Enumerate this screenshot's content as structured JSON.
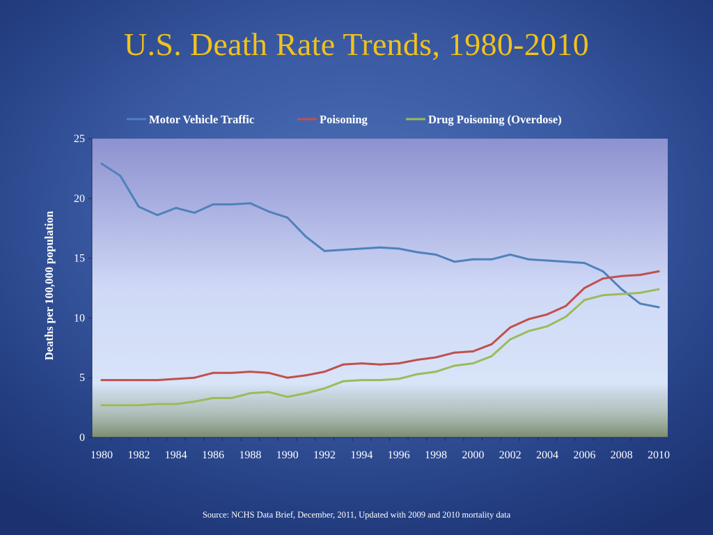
{
  "slide": {
    "title": "U.S. Death Rate Trends, 1980-2010",
    "source": "Source:  NCHS Data Brief, December, 2011, Updated with 2009 and 2010 mortality data"
  },
  "chart_data": {
    "type": "line",
    "title": "",
    "xlabel": "",
    "ylabel": "Deaths per 100,000 population",
    "ylim": [
      0,
      25
    ],
    "xlim": [
      1980,
      2010
    ],
    "yticks": [
      "0",
      "5",
      "10",
      "15",
      "20",
      "25"
    ],
    "xticks": [
      "1980",
      "1982",
      "1984",
      "1986",
      "1988",
      "1990",
      "1992",
      "1994",
      "1996",
      "1998",
      "2000",
      "2002",
      "2004",
      "2006",
      "2008",
      "2010"
    ],
    "legend_position": "top",
    "grid": false,
    "x": [
      1980,
      1981,
      1982,
      1983,
      1984,
      1985,
      1986,
      1987,
      1988,
      1989,
      1990,
      1991,
      1992,
      1993,
      1994,
      1995,
      1996,
      1997,
      1998,
      1999,
      2000,
      2001,
      2002,
      2003,
      2004,
      2005,
      2006,
      2007,
      2008,
      2009,
      2010
    ],
    "series": [
      {
        "name": "Motor Vehicle Traffic",
        "color": "#4f81bd",
        "values": [
          22.9,
          21.9,
          19.3,
          18.6,
          19.2,
          18.8,
          19.5,
          19.5,
          19.6,
          18.9,
          18.4,
          16.8,
          15.6,
          15.7,
          15.8,
          15.9,
          15.8,
          15.5,
          15.3,
          14.7,
          14.9,
          14.9,
          15.3,
          14.9,
          14.8,
          14.7,
          14.6,
          13.9,
          12.4,
          11.2,
          10.9
        ]
      },
      {
        "name": "Poisoning",
        "color": "#c0504d",
        "values": [
          4.8,
          4.8,
          4.8,
          4.8,
          4.9,
          5.0,
          5.4,
          5.4,
          5.5,
          5.4,
          5.0,
          5.2,
          5.5,
          6.1,
          6.2,
          6.1,
          6.2,
          6.5,
          6.7,
          7.1,
          7.2,
          7.8,
          9.2,
          9.9,
          10.3,
          11.0,
          12.5,
          13.3,
          13.5,
          13.6,
          13.9
        ]
      },
      {
        "name": "Drug Poisoning (Overdose)",
        "color": "#9bbb59",
        "values": [
          2.7,
          2.7,
          2.7,
          2.8,
          2.8,
          3.0,
          3.3,
          3.3,
          3.7,
          3.8,
          3.4,
          3.7,
          4.1,
          4.7,
          4.8,
          4.8,
          4.9,
          5.3,
          5.5,
          6.0,
          6.2,
          6.8,
          8.2,
          8.9,
          9.3,
          10.1,
          11.5,
          11.9,
          12.0,
          12.1,
          12.4
        ]
      }
    ]
  }
}
